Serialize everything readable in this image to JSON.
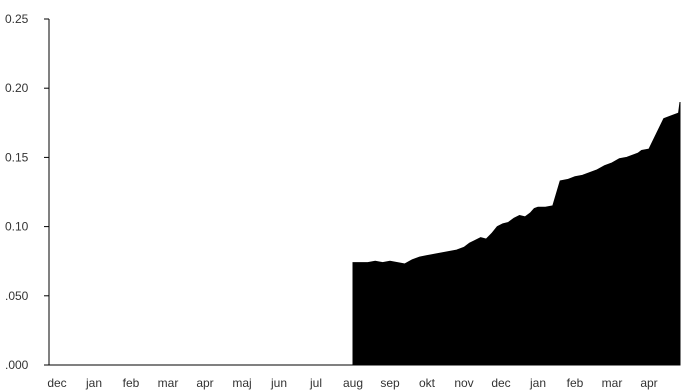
{
  "chart_data": {
    "type": "area",
    "title": "",
    "xlabel": "",
    "ylabel": "",
    "x_ticks": [
      "dec",
      "jan",
      "feb",
      "mar",
      "apr",
      "maj",
      "jun",
      "jul",
      "aug",
      "sep",
      "okt",
      "nov",
      "dec",
      "jan",
      "feb",
      "mar",
      "apr"
    ],
    "y_ticks": [
      ".000",
      ".050",
      "0.10",
      "0.15",
      "0.20",
      "0.25"
    ],
    "y_tick_values": [
      0,
      0.05,
      0.1,
      0.15,
      0.2,
      0.25
    ],
    "ylim": [
      0,
      0.25
    ],
    "grid": false,
    "legend": "none",
    "fill_color": "#000000",
    "series": [
      {
        "x": [
          8.0,
          8.2,
          8.4,
          8.6,
          8.8,
          9.0,
          9.2,
          9.4,
          9.6,
          9.8,
          10.0,
          10.2,
          10.4,
          10.6,
          10.8,
          11.0,
          11.15,
          11.3,
          11.45,
          11.6,
          11.75,
          11.9,
          12.05,
          12.2,
          12.35,
          12.5,
          12.65,
          12.8,
          12.9,
          13.0,
          13.2,
          13.4,
          13.6,
          13.8,
          14.0,
          14.2,
          14.4,
          14.6,
          14.8,
          15.0,
          15.2,
          15.4,
          15.6,
          15.7,
          15.8,
          16.0,
          16.2,
          16.4,
          16.6,
          16.8,
          17.0
        ],
        "values": [
          0.074,
          0.074,
          0.074,
          0.075,
          0.074,
          0.075,
          0.074,
          0.073,
          0.076,
          0.078,
          0.079,
          0.08,
          0.081,
          0.082,
          0.083,
          0.085,
          0.088,
          0.09,
          0.092,
          0.091,
          0.095,
          0.1,
          0.102,
          0.103,
          0.106,
          0.108,
          0.107,
          0.11,
          0.113,
          0.114,
          0.114,
          0.115,
          0.133,
          0.134,
          0.136,
          0.137,
          0.139,
          0.141,
          0.144,
          0.146,
          0.149,
          0.15,
          0.152,
          0.153,
          0.155,
          0.156,
          0.167,
          0.178,
          0.18,
          0.182,
          0.19
        ]
      }
    ]
  }
}
